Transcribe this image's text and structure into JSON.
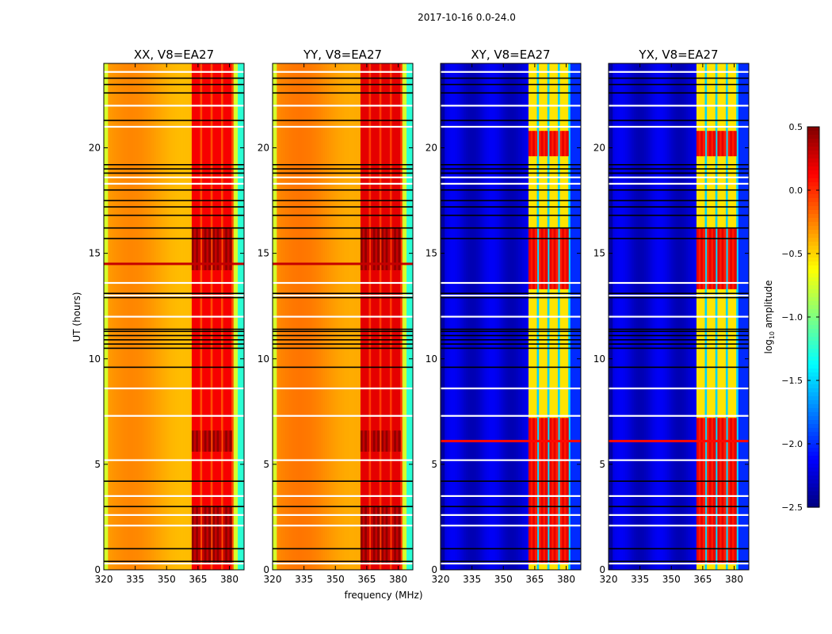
{
  "chart_data": {
    "type": "heatmap",
    "suptitle": "2017-10-16 0.0-24.0",
    "xlabel": "frequency (MHz)",
    "ylabel": "UT (hours)",
    "xlim": [
      320,
      387
    ],
    "ylim": [
      0,
      24
    ],
    "xticks": [
      320,
      335,
      350,
      365,
      380
    ],
    "yticks": [
      0,
      5,
      10,
      15,
      20
    ],
    "colorbar": {
      "label": "log10 amplitude",
      "label_main": "log",
      "label_sub": "10",
      "label_rest": " amplitude",
      "range": [
        -2.5,
        0.5
      ],
      "ticks": [
        "0.5",
        "0.0",
        "−0.5",
        "−1.0",
        "−1.5",
        "−2.0",
        "−2.5"
      ],
      "tick_values": [
        0.5,
        0.0,
        -0.5,
        -1.0,
        -1.5,
        -2.0,
        -2.5
      ],
      "colormap": "jet"
    },
    "panels": [
      {
        "title": "XX, V8=EA27",
        "kind": "parallel",
        "base": -0.35,
        "edge": -0.75,
        "band": 0.15,
        "band_hot": 0.45,
        "stripe": -0.1,
        "hot_hours": [
          [
            0.3,
            3.0
          ],
          [
            5.6,
            6.6
          ],
          [
            14.2,
            16.2
          ]
        ],
        "line_hours": [
          14.5
        ]
      },
      {
        "title": "YY, V8=EA27",
        "kind": "parallel",
        "base": -0.3,
        "edge": -0.75,
        "band": 0.2,
        "band_hot": 0.45,
        "stripe": -0.05,
        "hot_hours": [
          [
            0.3,
            3.0
          ],
          [
            5.6,
            6.6
          ],
          [
            14.2,
            16.2
          ]
        ],
        "line_hours": [
          14.5
        ]
      },
      {
        "title": "XY, V8=EA27",
        "kind": "cross",
        "base": -2.25,
        "edge": -2.4,
        "band": -0.55,
        "band_hot": 0.2,
        "stripe": -1.5,
        "hot_hours": [
          [
            0.3,
            7.2
          ],
          [
            13.3,
            16.2
          ],
          [
            19.6,
            20.8
          ]
        ],
        "line_hours": [
          6.1
        ]
      },
      {
        "title": "YX, V8=EA27",
        "kind": "cross",
        "base": -2.25,
        "edge": -2.4,
        "band": -0.55,
        "band_hot": 0.2,
        "stripe": -1.5,
        "hot_hours": [
          [
            0.3,
            7.2
          ],
          [
            13.3,
            16.2
          ],
          [
            19.6,
            20.8
          ]
        ],
        "line_hours": [
          6.1
        ]
      }
    ],
    "rfi_band_mhz": [
      362,
      382
    ],
    "flagged_hours": [
      0.4,
      1.0,
      3.0,
      4.2,
      9.6,
      10.5,
      10.7,
      10.9,
      11.1,
      11.3,
      11.4,
      12.9,
      13.1,
      15.7,
      16.2,
      16.8,
      17.2,
      17.5,
      18.0,
      18.8,
      19.0,
      19.2,
      21.3,
      22.6,
      23.0,
      23.3
    ],
    "gap_hours": [
      0.3,
      2.1,
      2.6,
      3.5,
      5.2,
      7.3,
      8.6,
      12.0,
      13.0,
      13.6,
      18.3,
      18.6,
      21.0,
      22.0,
      23.6
    ]
  }
}
